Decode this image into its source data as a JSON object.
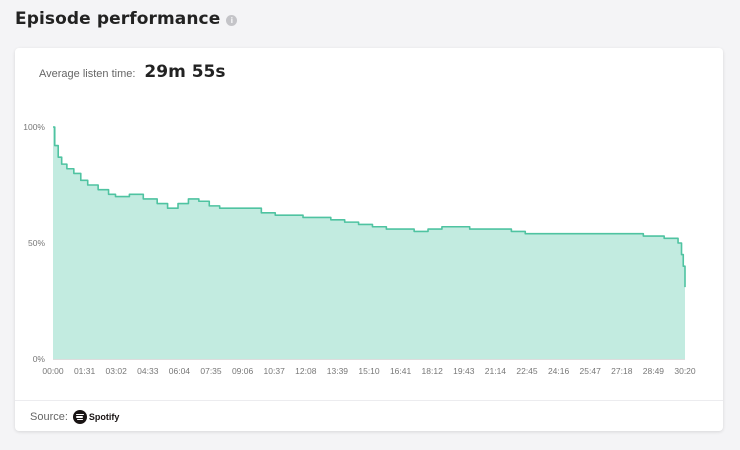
{
  "header": {
    "title": "Episode performance",
    "info_icon": "info-icon"
  },
  "stat": {
    "label": "Average listen time:",
    "value": "29m 55s"
  },
  "footer": {
    "source_label": "Source:",
    "source_name": "Spotify"
  },
  "colors": {
    "line": "#4fc3a1",
    "fill": "#c2ebe0",
    "axis": "#dddddd"
  },
  "chart_data": {
    "type": "area",
    "title": "",
    "xlabel": "",
    "ylabel": "",
    "x_ticks": [
      "00:00",
      "01:31",
      "03:02",
      "04:33",
      "06:04",
      "07:35",
      "09:06",
      "10:37",
      "12:08",
      "13:39",
      "15:10",
      "16:41",
      "18:12",
      "19:43",
      "21:14",
      "22:45",
      "24:16",
      "25:47",
      "27:18",
      "28:49",
      "30:20"
    ],
    "y_ticks": [
      "0%",
      "50%",
      "100%"
    ],
    "ylim": [
      0,
      100
    ],
    "xlim_seconds": [
      0,
      1820
    ],
    "grid": false,
    "legend": "none",
    "series": [
      {
        "x_seconds": [
          0,
          5,
          15,
          25,
          40,
          60,
          80,
          100,
          130,
          160,
          180,
          220,
          260,
          300,
          330,
          360,
          390,
          420,
          450,
          480,
          520,
          560,
          580,
          600,
          640,
          680,
          720,
          760,
          800,
          840,
          880,
          920,
          960,
          1000,
          1040,
          1080,
          1120,
          1160,
          1200,
          1240,
          1280,
          1300,
          1320,
          1360,
          1400,
          1440,
          1480,
          1520,
          1560,
          1600,
          1640,
          1680,
          1700,
          1730,
          1760,
          1780,
          1800,
          1810,
          1815,
          1820
        ],
        "y_percent": [
          100,
          92,
          87,
          84,
          82,
          80,
          77,
          75,
          73,
          71,
          70,
          71,
          69,
          67,
          65,
          67,
          69,
          68,
          66,
          65,
          65,
          65,
          65,
          63,
          62,
          62,
          61,
          61,
          60,
          59,
          58,
          57,
          56,
          56,
          55,
          56,
          57,
          57,
          56,
          56,
          56,
          56,
          55,
          54,
          54,
          54,
          54,
          54,
          54,
          54,
          54,
          54,
          53,
          53,
          52,
          52,
          50,
          45,
          40,
          31
        ]
      }
    ]
  }
}
